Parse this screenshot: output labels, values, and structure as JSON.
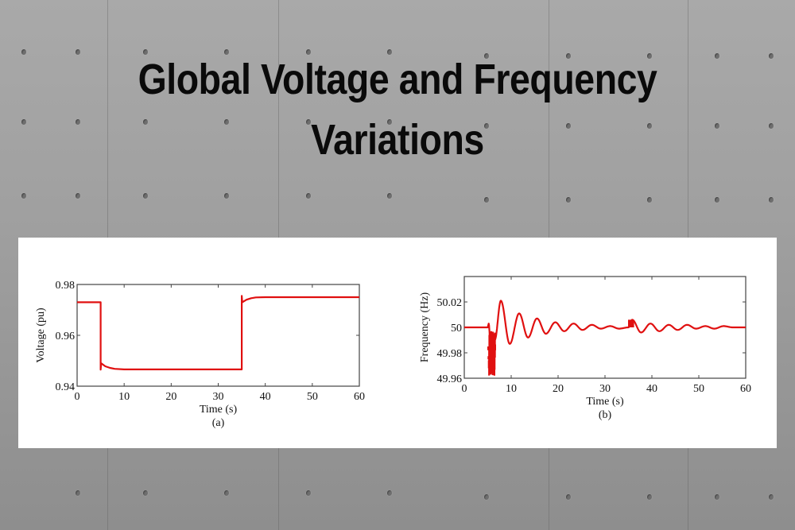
{
  "page": {
    "title_line1": "Global Voltage and Frequency",
    "title_line2": "Variations",
    "accent_color": "#e01010"
  },
  "chart_data": [
    {
      "type": "line",
      "panel_label": "(a)",
      "title": "",
      "xlabel": "Time (s)",
      "ylabel": "Voltage (pu)",
      "xlim": [
        0,
        60
      ],
      "ylim": [
        0.94,
        0.98
      ],
      "xticks": [
        "0",
        "10",
        "20",
        "30",
        "40",
        "50",
        "60"
      ],
      "yticks": [
        "0.94",
        "0.96",
        "0.98"
      ],
      "grid": false,
      "legend": null,
      "series": [
        {
          "name": "Voltage",
          "color": "#e01010",
          "x": [
            0,
            5,
            5,
            5.1,
            6,
            7,
            8,
            10,
            20,
            30,
            35,
            35,
            35.1,
            36,
            37,
            38,
            40,
            50,
            60
          ],
          "y": [
            0.973,
            0.973,
            0.9465,
            0.949,
            0.9478,
            0.9472,
            0.9468,
            0.9466,
            0.9466,
            0.9466,
            0.9466,
            0.9755,
            0.973,
            0.974,
            0.9746,
            0.9749,
            0.975,
            0.975,
            0.975
          ]
        }
      ]
    },
    {
      "type": "line",
      "panel_label": "(b)",
      "title": "",
      "xlabel": "Time (s)",
      "ylabel": "Frequency (Hz)",
      "xlim": [
        0,
        60
      ],
      "ylim": [
        49.96,
        50.04
      ],
      "xticks": [
        "0",
        "10",
        "20",
        "30",
        "40",
        "50",
        "60"
      ],
      "yticks": [
        "49.96",
        "49.98",
        "50",
        "50.02"
      ],
      "grid": false,
      "legend": null,
      "series": [
        {
          "name": "Frequency",
          "color": "#e01010",
          "x": [
            0,
            5,
            5.2,
            5.8,
            6.5,
            7.8,
            9.7,
            11.7,
            13.6,
            15.5,
            17.4,
            19.4,
            21.3,
            23.3,
            25.2,
            27.2,
            29.1,
            31.1,
            33,
            35,
            35.8,
            37.7,
            39.7,
            41.6,
            43.6,
            45.5,
            47.5,
            49.4,
            51.4,
            53.3,
            55.3,
            57.2,
            60
          ],
          "y": [
            50.0,
            50.0,
            50.003,
            49.97,
            49.99,
            50.021,
            49.987,
            50.011,
            49.992,
            50.007,
            49.995,
            50.004,
            49.997,
            50.003,
            49.998,
            50.002,
            49.999,
            50.001,
            49.999,
            50.0,
            50.006,
            49.996,
            50.003,
            49.997,
            50.002,
            49.998,
            50.002,
            49.999,
            50.001,
            49.999,
            50.001,
            50.0,
            50.0
          ]
        }
      ]
    }
  ]
}
